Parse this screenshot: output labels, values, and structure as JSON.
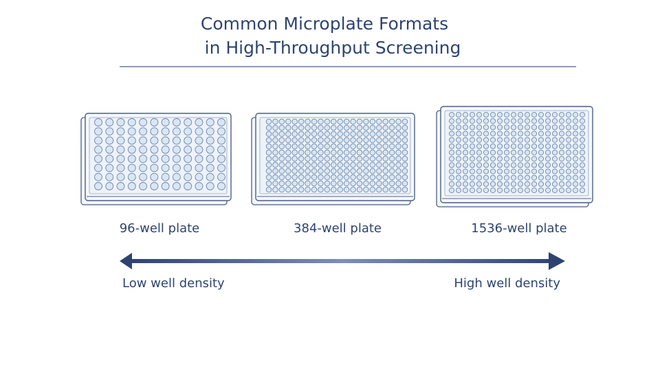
{
  "title": {
    "lines": [
      "Common Microplate Formats",
      "in High-Throughput Screening"
    ]
  },
  "plates": [
    {
      "label": "96-well plate"
    },
    {
      "label": "384-well plate"
    },
    {
      "label": "1536-well plate"
    }
  ],
  "scale": {
    "low": "Low well density",
    "high": "High well density"
  }
}
